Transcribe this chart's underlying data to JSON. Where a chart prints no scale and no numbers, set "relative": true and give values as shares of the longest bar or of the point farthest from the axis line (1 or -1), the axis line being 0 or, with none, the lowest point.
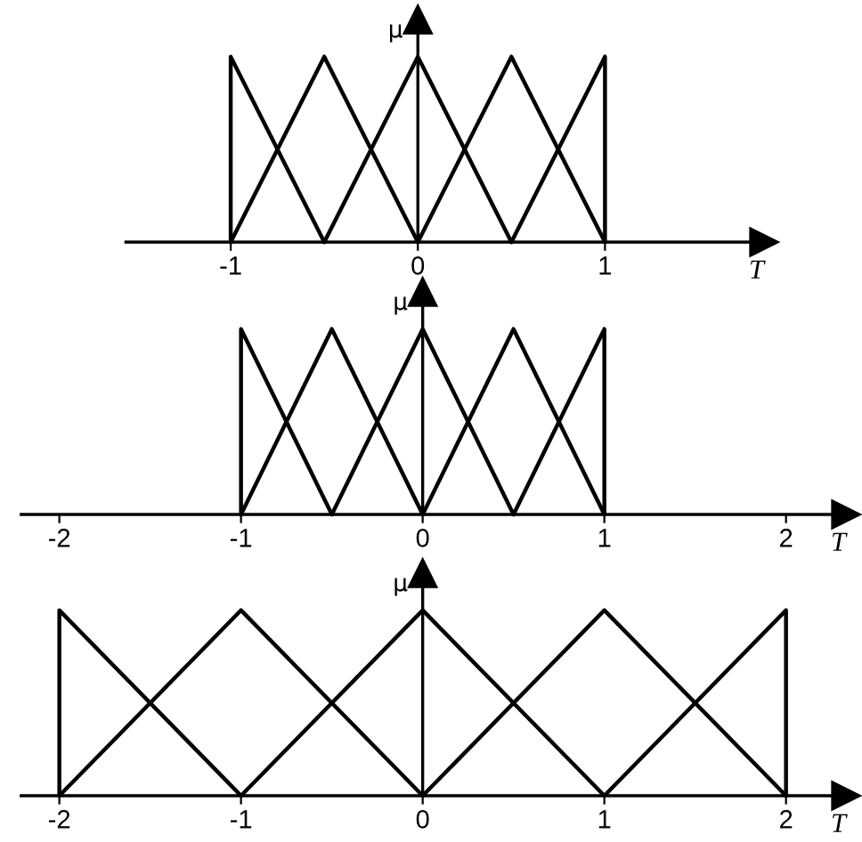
{
  "chart_data": [
    {
      "type": "line",
      "xlabel": "T",
      "ylabel": "μ",
      "relative": true,
      "xlim": [
        -1.56,
        1.85
      ],
      "xticks": [
        -1,
        0,
        1
      ],
      "series": [
        {
          "color": "#000000",
          "x": [
            -1,
            -1,
            -0.5
          ],
          "values": [
            0,
            1,
            0
          ]
        },
        {
          "color": "#000000",
          "x": [
            -1,
            -0.5,
            0
          ],
          "values": [
            0,
            1,
            0
          ]
        },
        {
          "color": "#000000",
          "x": [
            -0.5,
            0,
            0.5
          ],
          "values": [
            0,
            1,
            0
          ]
        },
        {
          "color": "#000000",
          "x": [
            0,
            0.5,
            1
          ],
          "values": [
            0,
            1,
            0
          ]
        },
        {
          "color": "#000000",
          "x": [
            0.5,
            1,
            1
          ],
          "values": [
            0,
            1,
            0
          ]
        }
      ]
    },
    {
      "type": "line",
      "xlabel": "T",
      "ylabel": "μ",
      "relative": true,
      "xlim": [
        -2.21,
        2.33
      ],
      "xticks": [
        -2,
        -1,
        0,
        1,
        2
      ],
      "series": [
        {
          "color": "#000000",
          "x": [
            -1,
            -1,
            -0.5
          ],
          "values": [
            0,
            1,
            0
          ]
        },
        {
          "color": "#000000",
          "x": [
            -1,
            -0.5,
            0
          ],
          "values": [
            0,
            1,
            0
          ]
        },
        {
          "color": "#000000",
          "x": [
            -0.5,
            0,
            0.5
          ],
          "values": [
            0,
            1,
            0
          ]
        },
        {
          "color": "#000000",
          "x": [
            0,
            0.5,
            1
          ],
          "values": [
            0,
            1,
            0
          ]
        },
        {
          "color": "#000000",
          "x": [
            0.5,
            1,
            1
          ],
          "values": [
            0,
            1,
            0
          ]
        }
      ]
    },
    {
      "type": "line",
      "xlabel": "T",
      "ylabel": "μ",
      "relative": true,
      "xlim": [
        -2.21,
        2.33
      ],
      "xticks": [
        -2,
        -1,
        0,
        1,
        2
      ],
      "series": [
        {
          "color": "#000000",
          "x": [
            -2,
            -2,
            -1
          ],
          "values": [
            0,
            1,
            0
          ]
        },
        {
          "color": "#000000",
          "x": [
            -2,
            -1,
            0
          ],
          "values": [
            0,
            1,
            0
          ]
        },
        {
          "color": "#000000",
          "x": [
            -1,
            0,
            1
          ],
          "values": [
            0,
            1,
            0
          ]
        },
        {
          "color": "#000000",
          "x": [
            0,
            1,
            2
          ],
          "values": [
            0,
            1,
            0
          ]
        },
        {
          "color": "#000000",
          "x": [
            1,
            2,
            2
          ],
          "values": [
            0,
            1,
            0
          ]
        }
      ]
    }
  ]
}
